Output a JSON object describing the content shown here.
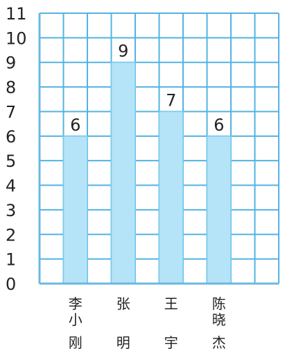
{
  "chart_data": {
    "type": "bar",
    "categories": [
      [
        "李",
        "小",
        "刚"
      ],
      [
        "张",
        "",
        "明"
      ],
      [
        "王",
        "",
        "宇"
      ],
      [
        "陈",
        "晓",
        "杰"
      ]
    ],
    "values": [
      6,
      9,
      7,
      6
    ],
    "data_labels": [
      "6",
      "9",
      "7",
      "6"
    ],
    "yticks": [
      "0",
      "1",
      "2",
      "3",
      "4",
      "5",
      "6",
      "7",
      "8",
      "9",
      "10",
      "11"
    ],
    "ylim": [
      0,
      11
    ],
    "title": "",
    "xlabel": "",
    "ylabel": "",
    "grid": true,
    "colors": {
      "grid": "#52b3e3",
      "bar_fill": "#b5e3f7",
      "bar_stroke": "#7ccbee",
      "axis": "#6ab9df"
    }
  }
}
